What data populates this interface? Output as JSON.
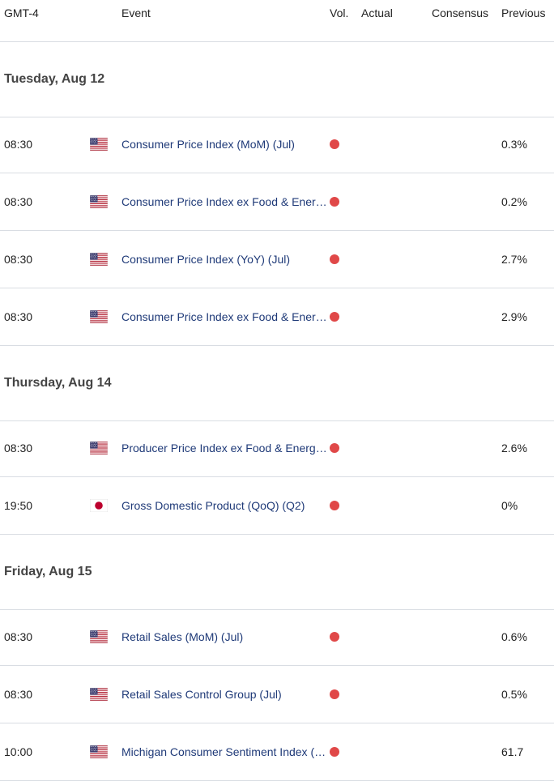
{
  "header": {
    "timezone": "GMT-4",
    "event": "Event",
    "vol": "Vol.",
    "actual": "Actual",
    "consensus": "Consensus",
    "previous": "Previous"
  },
  "days": [
    {
      "label": "Tuesday, Aug 12",
      "events": [
        {
          "time": "08:30",
          "country": "us-flag-icon",
          "event": "Consumer Price Index (MoM) (Jul)",
          "volatility": "high",
          "actual": "",
          "consensus": "",
          "previous": "0.3%"
        },
        {
          "time": "08:30",
          "country": "us-flag-icon",
          "event": "Consumer Price Index ex Food & Energy (MoM) (Jul)",
          "volatility": "high",
          "actual": "",
          "consensus": "",
          "previous": "0.2%"
        },
        {
          "time": "08:30",
          "country": "us-flag-icon",
          "event": "Consumer Price Index (YoY) (Jul)",
          "volatility": "high",
          "actual": "",
          "consensus": "",
          "previous": "2.7%"
        },
        {
          "time": "08:30",
          "country": "us-flag-icon",
          "event": "Consumer Price Index ex Food & Energy (YoY) (Jul)",
          "volatility": "high",
          "actual": "",
          "consensus": "",
          "previous": "2.9%"
        }
      ]
    },
    {
      "label": "Thursday, Aug 14",
      "events": [
        {
          "time": "08:30",
          "country": "us-flag-icon",
          "event": "Producer Price Index ex Food & Energy (YoY) (Jul)",
          "volatility": "high",
          "actual": "",
          "consensus": "",
          "previous": "2.6%"
        },
        {
          "time": "19:50",
          "country": "jp-flag-icon",
          "event": "Gross Domestic Product (QoQ) (Q2)",
          "volatility": "high",
          "actual": "",
          "consensus": "",
          "previous": "0%"
        }
      ]
    },
    {
      "label": "Friday, Aug 15",
      "events": [
        {
          "time": "08:30",
          "country": "us-flag-icon",
          "event": "Retail Sales (MoM) (Jul)",
          "volatility": "high",
          "actual": "",
          "consensus": "",
          "previous": "0.6%"
        },
        {
          "time": "08:30",
          "country": "us-flag-icon",
          "event": "Retail Sales Control Group (Jul)",
          "volatility": "high",
          "actual": "",
          "consensus": "",
          "previous": "0.5%"
        },
        {
          "time": "10:00",
          "country": "us-flag-icon",
          "event": "Michigan Consumer Sentiment Index (Aug)",
          "volatility": "high",
          "actual": "",
          "consensus": "",
          "previous": "61.7"
        }
      ]
    }
  ],
  "colors": {
    "event_link": "#1f3a78",
    "volatility_high": "#e04848",
    "divider": "#d9dde3"
  }
}
